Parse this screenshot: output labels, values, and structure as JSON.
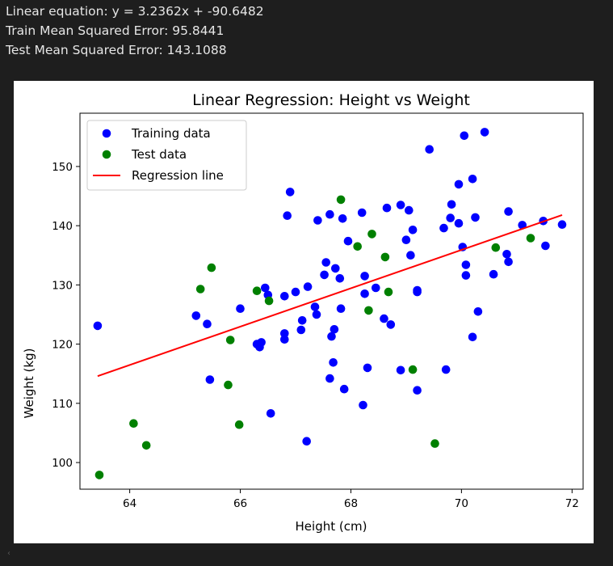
{
  "output": {
    "line1": "Linear equation: y = 3.2362x + -90.6482",
    "line2": "Train Mean Squared Error: 95.8441",
    "line3": "Test Mean Squared Error: 143.1088"
  },
  "chart_data": {
    "type": "scatter",
    "title": "Linear Regression: Height vs Weight",
    "xlabel": "Height (cm)",
    "ylabel": "Weight (kg)",
    "xlim": [
      63.1,
      72.2
    ],
    "ylim": [
      95.5,
      159.0
    ],
    "xticks": [
      64,
      66,
      68,
      70,
      72
    ],
    "yticks": [
      100,
      110,
      120,
      130,
      140,
      150
    ],
    "legend_position": "top-left",
    "grid": false,
    "colors": {
      "train": "#0000ff",
      "test": "#008000",
      "line": "#ff0000"
    },
    "series": [
      {
        "name": "Training data",
        "color": "#0000ff",
        "points": [
          [
            63.42,
            123.1
          ],
          [
            65.2,
            124.8
          ],
          [
            65.4,
            123.4
          ],
          [
            65.45,
            114.0
          ],
          [
            66.0,
            126.0
          ],
          [
            66.3,
            120.0
          ],
          [
            66.35,
            119.5
          ],
          [
            66.38,
            120.3
          ],
          [
            66.45,
            129.5
          ],
          [
            66.5,
            128.3
          ],
          [
            66.55,
            108.3
          ],
          [
            66.8,
            128.1
          ],
          [
            66.8,
            121.8
          ],
          [
            66.8,
            120.8
          ],
          [
            66.85,
            141.7
          ],
          [
            66.9,
            145.7
          ],
          [
            67.0,
            128.8
          ],
          [
            67.1,
            122.4
          ],
          [
            67.12,
            124.0
          ],
          [
            67.2,
            103.6
          ],
          [
            67.22,
            129.7
          ],
          [
            67.35,
            126.3
          ],
          [
            67.38,
            125.0
          ],
          [
            67.4,
            140.9
          ],
          [
            67.52,
            131.7
          ],
          [
            67.55,
            133.8
          ],
          [
            67.62,
            141.9
          ],
          [
            67.62,
            114.2
          ],
          [
            67.65,
            121.3
          ],
          [
            67.68,
            116.9
          ],
          [
            67.7,
            122.5
          ],
          [
            67.72,
            132.8
          ],
          [
            67.8,
            131.1
          ],
          [
            67.82,
            126.0
          ],
          [
            67.85,
            141.2
          ],
          [
            67.88,
            112.4
          ],
          [
            67.95,
            137.4
          ],
          [
            68.2,
            142.2
          ],
          [
            68.22,
            109.7
          ],
          [
            68.25,
            131.5
          ],
          [
            68.25,
            128.5
          ],
          [
            68.3,
            116.0
          ],
          [
            68.45,
            129.5
          ],
          [
            68.6,
            124.3
          ],
          [
            68.65,
            143.0
          ],
          [
            68.72,
            123.3
          ],
          [
            68.9,
            143.5
          ],
          [
            68.9,
            115.6
          ],
          [
            69.0,
            137.6
          ],
          [
            69.05,
            142.6
          ],
          [
            69.08,
            135.0
          ],
          [
            69.12,
            139.3
          ],
          [
            69.2,
            129.1
          ],
          [
            69.2,
            128.8
          ],
          [
            69.2,
            112.2
          ],
          [
            69.42,
            152.9
          ],
          [
            69.68,
            139.6
          ],
          [
            69.72,
            115.7
          ],
          [
            69.8,
            141.3
          ],
          [
            69.82,
            143.6
          ],
          [
            69.95,
            147.0
          ],
          [
            69.95,
            140.4
          ],
          [
            70.02,
            136.4
          ],
          [
            70.05,
            155.2
          ],
          [
            70.08,
            133.4
          ],
          [
            70.08,
            131.6
          ],
          [
            70.2,
            147.9
          ],
          [
            70.2,
            121.2
          ],
          [
            70.25,
            141.4
          ],
          [
            70.3,
            125.5
          ],
          [
            70.42,
            155.8
          ],
          [
            70.58,
            131.8
          ],
          [
            70.82,
            135.2
          ],
          [
            70.85,
            142.4
          ],
          [
            70.85,
            133.9
          ],
          [
            71.1,
            140.1
          ],
          [
            71.48,
            140.8
          ],
          [
            71.52,
            136.6
          ],
          [
            71.82,
            140.2
          ]
        ]
      },
      {
        "name": "Test data",
        "color": "#008000",
        "points": [
          [
            63.45,
            97.9
          ],
          [
            64.07,
            106.6
          ],
          [
            64.3,
            102.9
          ],
          [
            65.28,
            129.3
          ],
          [
            65.48,
            132.9
          ],
          [
            65.78,
            113.1
          ],
          [
            65.82,
            120.7
          ],
          [
            65.98,
            106.4
          ],
          [
            66.3,
            129.0
          ],
          [
            66.52,
            127.3
          ],
          [
            67.82,
            144.4
          ],
          [
            68.12,
            136.5
          ],
          [
            68.32,
            125.7
          ],
          [
            68.38,
            138.6
          ],
          [
            68.62,
            134.7
          ],
          [
            68.68,
            128.8
          ],
          [
            69.12,
            115.7
          ],
          [
            69.52,
            103.2
          ],
          [
            70.62,
            136.3
          ],
          [
            71.25,
            137.9
          ]
        ]
      },
      {
        "name": "Regression line",
        "color": "#ff0000",
        "line": [
          [
            63.42,
            114.6
          ],
          [
            71.82,
            141.8
          ]
        ]
      }
    ]
  }
}
